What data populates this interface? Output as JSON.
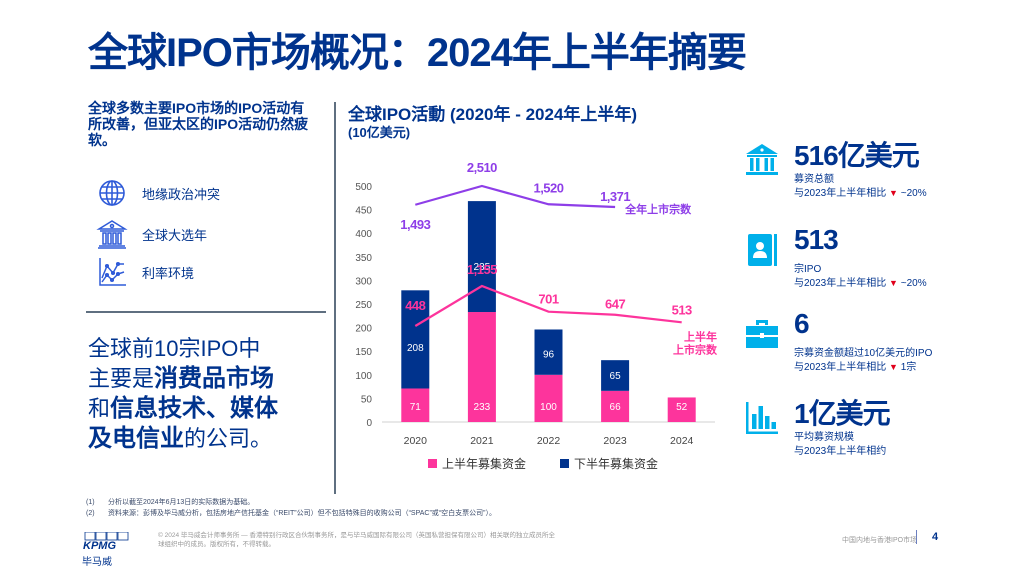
{
  "header": {
    "title": "全球IPO市场概况：2024年上半年摘要"
  },
  "left": {
    "lead": "全球多数主要IPO市场的IPO活动有所改善，但亚太区的IPO活动仍然疲软。",
    "risks": [
      {
        "icon": "globe-icon",
        "label": "地缘政治冲突"
      },
      {
        "icon": "government-building-icon",
        "label": "全球大选年"
      },
      {
        "icon": "line-chart-icon",
        "label": "利率环境"
      }
    ],
    "top10": {
      "p1": "全球前10宗IPO中",
      "p2a": "主要是",
      "p2b": "消费品市场",
      "p3a": "和",
      "p3b": "信息技术、媒体",
      "p4a": "及电信业",
      "p4b": "的公司。"
    }
  },
  "chart": {
    "title": "全球IPO活動 (2020年 - 2024年上半年)",
    "subtitle": "(10亿美元)"
  },
  "chart_data": {
    "type": "bar",
    "stacked": true,
    "title": "全球IPO活動 (2020年 - 2024年上半年)",
    "subtitle": "(10亿美元)",
    "categories": [
      "2020",
      "2021",
      "2022",
      "2023",
      "2024"
    ],
    "yticks": [
      "0",
      "50",
      "100",
      "150",
      "200",
      "250",
      "300",
      "350",
      "400",
      "450",
      "500"
    ],
    "ylim": [
      0,
      500
    ],
    "series": [
      {
        "name": "上半年募集资金",
        "color": "#FD349C",
        "values": [
          71,
          233,
          100,
          66,
          52
        ]
      },
      {
        "name": "下半年募集资金",
        "color": "#00338D",
        "values": [
          208,
          235,
          96,
          65,
          null
        ]
      }
    ],
    "lines": [
      {
        "name": "全年上市宗数",
        "color": "#8E3EE8",
        "values": [
          1493,
          2510,
          1520,
          1371,
          null
        ],
        "labels": [
          "1,493",
          "2,510",
          "1,520",
          "1,371"
        ]
      },
      {
        "name": "上半年上市宗数",
        "label_lines": [
          "上半年",
          "上市宗数"
        ],
        "color": "#FD349C",
        "values": [
          448,
          1155,
          701,
          647,
          513
        ],
        "labels": [
          "448",
          "1,155",
          "701",
          "647",
          "513"
        ]
      }
    ],
    "legend": "bottom",
    "grid": false
  },
  "kpis": [
    {
      "icon": "bank-icon",
      "value": "516亿美元",
      "line1": "募资总额",
      "line2": "与2023年上半年相比",
      "trend": "▼",
      "delta": " ~20%"
    },
    {
      "icon": "contact-book-icon",
      "value": "513",
      "line1": "宗IPO",
      "line2": "与2023年上半年相比",
      "trend": "▼",
      "delta": " ~20%"
    },
    {
      "icon": "briefcase-icon",
      "value": "6",
      "line1": "宗募资金额超过10亿美元的IPO",
      "line2": "与2023年上半年相比",
      "trend": "▼",
      "delta": " 1宗"
    },
    {
      "icon": "bar-chart-icon",
      "value": "1亿美元",
      "line1": "平均募资规模",
      "line2": "与2023年上半年相约",
      "trend": "",
      "delta": ""
    }
  ],
  "notes": [
    {
      "num": "(1)",
      "text": "分析以截至2024年6月13日的实际数据为基础。"
    },
    {
      "num": "(2)",
      "text": "资料来源：彭博及毕马威分析，包括房地产信托基金（“REIT”公司）但不包括特殊目的收购公司（“SPAC”或“空白支票公司”）。"
    }
  ],
  "footer": {
    "logo": "KPMG",
    "company_cn": "毕马威",
    "copyright": "© 2024 毕马威会计师事务所 — 香港特别行政区合伙制事务所，是与毕马威国际有限公司（英国私营担保有限公司）相关联的独立成员所全球组织中的成员。版权所有，不得转载。",
    "source": "中国内地与香港IPO市场",
    "page": "4"
  }
}
